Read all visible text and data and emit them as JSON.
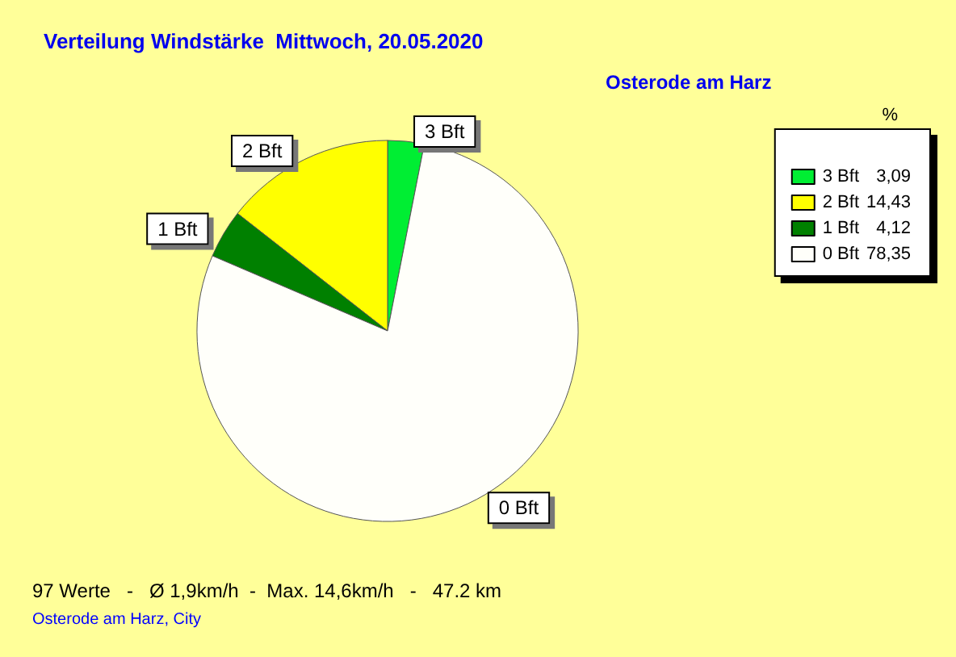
{
  "chart_data": {
    "type": "pie",
    "title": "Verteilung Windstärke  Mittwoch, 20.05.2020",
    "subtitle": "Osterode am Harz",
    "legend_title": "%",
    "categories": [
      "3 Bft",
      "2 Bft",
      "1 Bft",
      "0 Bft"
    ],
    "values": [
      3.09,
      14.43,
      4.12,
      78.35
    ],
    "value_labels": [
      "3,09",
      "14,43",
      "4,12",
      "78,35"
    ],
    "colors": [
      "#00ee33",
      "#ffff00",
      "#008000",
      "#fffffa"
    ],
    "legend": "top right",
    "annotations": [
      "97 Werte   -   Ø 1,9km/h  -  Max. 14,6km/h   -   47.2 km",
      "Osterode am Harz, City"
    ]
  }
}
